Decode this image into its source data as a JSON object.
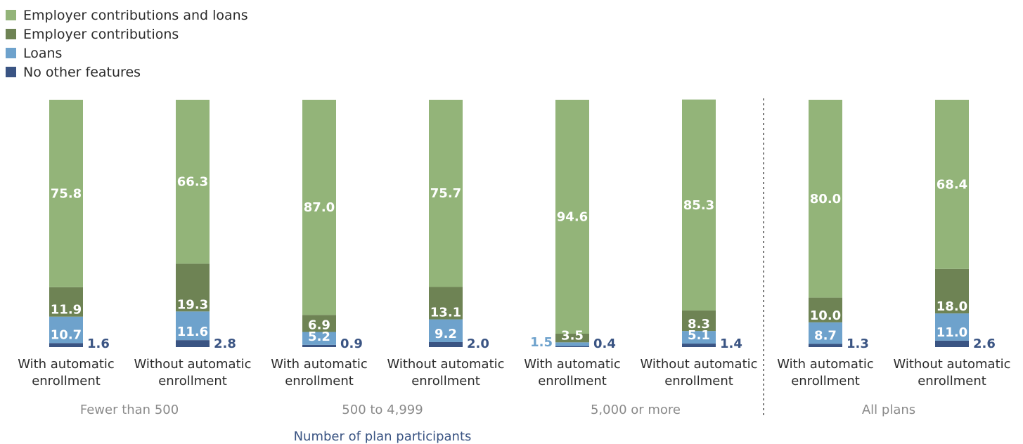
{
  "chart_data": {
    "type": "bar",
    "stacked": true,
    "legend_position": "top-left",
    "xlabel": "Number of plan participants",
    "categories": [
      "With automatic enrollment",
      "Without automatic enrollment",
      "With automatic enrollment",
      "Without automatic enrollment",
      "With automatic enrollment",
      "Without automatic enrollment",
      "With automatic enrollment",
      "Without automatic enrollment"
    ],
    "groups": [
      {
        "label": "Fewer than 500",
        "bars": [
          0,
          1
        ]
      },
      {
        "label": "500 to 4,999",
        "bars": [
          2,
          3
        ]
      },
      {
        "label": "5,000 or more",
        "bars": [
          4,
          5
        ]
      },
      {
        "label": "All plans",
        "bars": [
          6,
          7
        ]
      }
    ],
    "series": [
      {
        "name": "No other features",
        "color": "#3a5483",
        "values": [
          1.6,
          2.8,
          0.9,
          2.0,
          0.4,
          1.4,
          1.3,
          2.6
        ],
        "labels": [
          "1.6",
          "2.8",
          "0.9",
          "2.0",
          "0.4",
          "1.4",
          "1.3",
          "2.6"
        ]
      },
      {
        "name": "Loans",
        "color": "#6ea2cc",
        "values": [
          10.7,
          11.6,
          5.2,
          9.2,
          1.5,
          5.1,
          8.7,
          11.0
        ],
        "labels": [
          "10.7",
          "11.6",
          "5.2",
          "9.2",
          "1.5",
          "5.1",
          "8.7",
          "11.0"
        ]
      },
      {
        "name": "Employer contributions",
        "color": "#6e8354",
        "values": [
          11.9,
          19.3,
          6.9,
          13.1,
          3.5,
          8.3,
          10.0,
          18.0
        ],
        "labels": [
          "11.9",
          "19.3",
          "6.9",
          "13.1",
          "3.5",
          "8.3",
          "10.0",
          "18.0"
        ]
      },
      {
        "name": "Employer contributions and loans",
        "color": "#93b479",
        "values": [
          75.8,
          66.3,
          87.0,
          75.7,
          94.6,
          85.3,
          80.0,
          68.4
        ],
        "labels": [
          "75.8",
          "66.3",
          "87.0",
          "75.7",
          "94.6",
          "85.3",
          "80.0",
          "68.4"
        ]
      }
    ],
    "ylim": [
      0,
      100
    ],
    "separator_before_group": 3
  }
}
